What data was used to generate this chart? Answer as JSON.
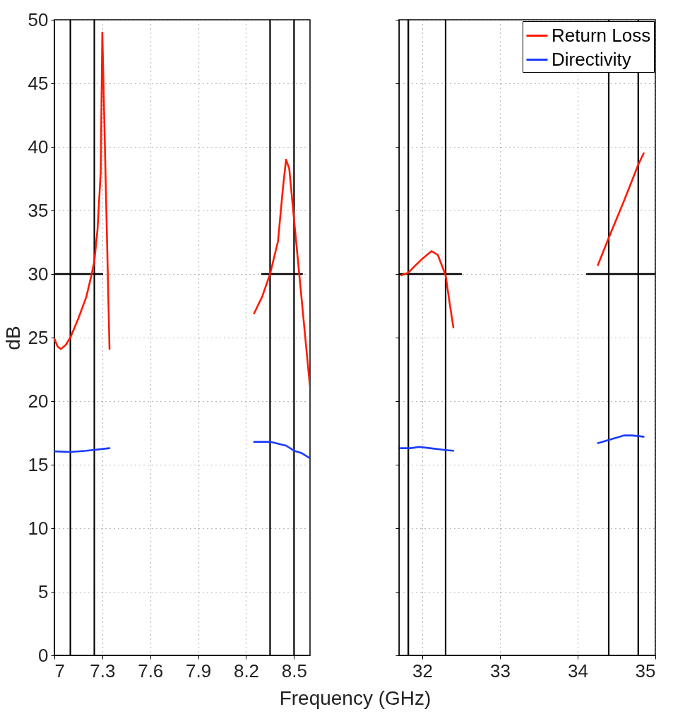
{
  "chart_data": [
    {
      "type": "line",
      "xlabel": "Frequency (GHz)",
      "ylabel": "dB",
      "xlim": [
        7,
        8.6
      ],
      "ylim": [
        0,
        50
      ],
      "xticks": [
        7,
        7.3,
        7.6,
        7.9,
        8.2,
        8.5
      ],
      "yticks": [
        0,
        5,
        10,
        15,
        20,
        25,
        30,
        35,
        40,
        45,
        50
      ],
      "grid": true,
      "legend": false,
      "line_style": "solid",
      "series": [
        {
          "type": "line",
          "color": "#000000",
          "x": [
            7.0,
            7.3
          ],
          "values": [
            30,
            30
          ]
        },
        {
          "type": "line",
          "color": "#000000",
          "x": [
            8.3,
            8.55
          ],
          "values": [
            30,
            30
          ]
        },
        {
          "color": "#ff1a00",
          "x": [
            7.0,
            7.02,
            7.04,
            7.07,
            7.1,
            7.15,
            7.2,
            7.23,
            7.25,
            7.27,
            7.29,
            7.3,
            7.345
          ],
          "values": [
            24.9,
            24.3,
            24.1,
            24.4,
            25.0,
            26.5,
            28.2,
            29.8,
            31.0,
            33.5,
            38,
            49,
            24.1
          ]
        },
        {
          "color": "#ff1a00",
          "x": [
            8.25,
            8.3,
            8.35,
            8.4,
            8.43,
            8.45,
            8.47,
            8.5,
            8.6
          ],
          "values": [
            26.9,
            28.2,
            30,
            32.6,
            36.7,
            39,
            38.3,
            34.3,
            21.1
          ]
        },
        {
          "color": "#1a3cff",
          "x": [
            7.0,
            7.1,
            7.2,
            7.345
          ],
          "values": [
            16.05,
            16.0,
            16.1,
            16.3
          ]
        },
        {
          "color": "#1a3cff",
          "x": [
            8.25,
            8.35,
            8.45,
            8.5,
            8.55,
            8.6
          ],
          "values": [
            16.8,
            16.8,
            16.5,
            16.1,
            15.9,
            15.5
          ]
        }
      ],
      "ref_lines": [
        {
          "axis": "x",
          "value": 7.1,
          "color": "#000000"
        },
        {
          "axis": "x",
          "value": 7.25,
          "color": "#000000"
        },
        {
          "axis": "x",
          "value": 8.35,
          "color": "#000000"
        },
        {
          "axis": "x",
          "value": 8.5,
          "color": "#000000"
        }
      ]
    },
    {
      "type": "line",
      "xlim": [
        31.7,
        35
      ],
      "ylim": [
        0,
        50
      ],
      "xticks": [
        32,
        33,
        34,
        35
      ],
      "yticks": [
        0,
        5,
        10,
        15,
        20,
        25,
        30,
        35,
        40,
        45,
        50
      ],
      "grid": true,
      "legend": "top right",
      "tick_labels": "x",
      "line_style": "solid",
      "series": [
        {
          "type": "line",
          "color": "#000000",
          "x": [
            31.7,
            32.5
          ],
          "values": [
            30,
            30
          ]
        },
        {
          "type": "line",
          "color": "#000000",
          "x": [
            34.12,
            35
          ],
          "values": [
            30,
            30
          ]
        },
        {
          "name": "Return Loss",
          "color": "#ff1a00",
          "x": [
            31.73,
            31.82,
            31.9,
            32.0,
            32.12,
            32.2,
            32.3,
            32.35,
            32.4
          ],
          "values": [
            29.9,
            30.1,
            30.6,
            31.2,
            31.8,
            31.5,
            29.9,
            27.8,
            25.8
          ]
        },
        {
          "color": "#ff1a00",
          "x": [
            34.26,
            34.39,
            34.6,
            34.78,
            34.85
          ],
          "values": [
            30.7,
            32.7,
            35.8,
            38.6,
            39.5
          ]
        },
        {
          "name": "Directivity",
          "color": "#1a3cff",
          "x": [
            31.72,
            31.85,
            31.96,
            32.1,
            32.3,
            32.4
          ],
          "values": [
            16.3,
            16.3,
            16.4,
            16.3,
            16.15,
            16.1
          ]
        },
        {
          "color": "#1a3cff",
          "x": [
            34.26,
            34.4,
            34.6,
            34.7,
            34.85
          ],
          "values": [
            16.7,
            16.95,
            17.3,
            17.3,
            17.2
          ]
        }
      ],
      "ref_lines": [
        {
          "axis": "x",
          "value": 31.82,
          "color": "#000000"
        },
        {
          "axis": "x",
          "value": 32.3,
          "color": "#000000"
        },
        {
          "axis": "x",
          "value": 34.4,
          "color": "#000000"
        },
        {
          "axis": "x",
          "value": 34.78,
          "color": "#000000"
        }
      ]
    }
  ]
}
